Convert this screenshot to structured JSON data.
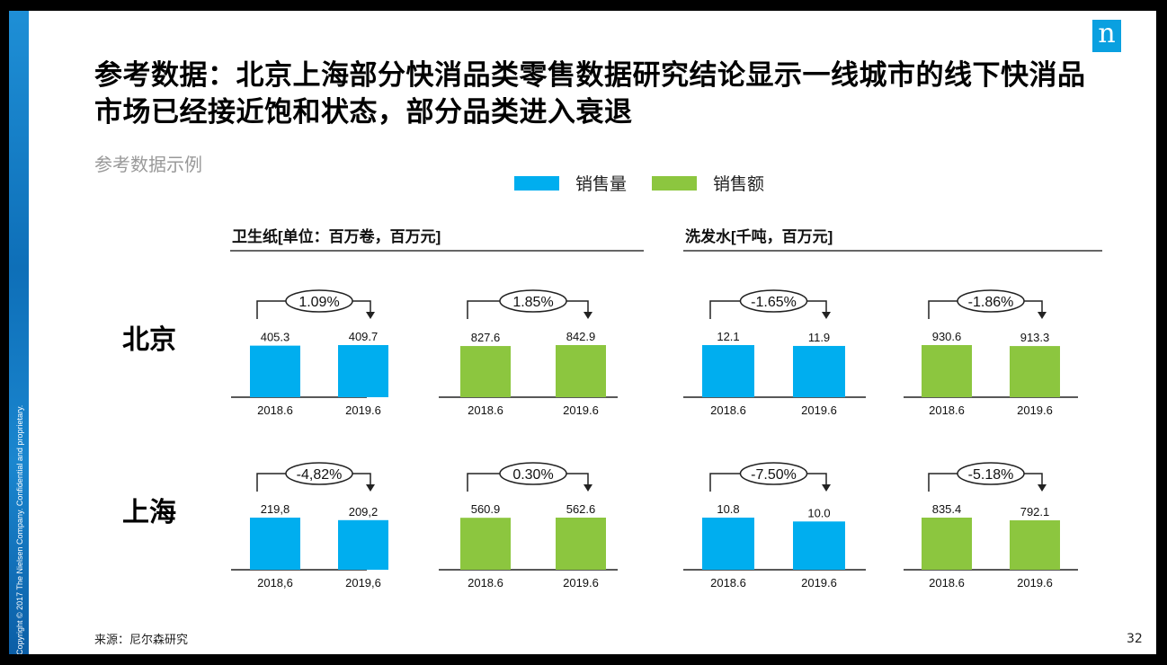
{
  "title": "参考数据：北京上海部分快消品类零售数据研究结论显示一线城市的线下快消品市场已经接近饱和状态，部分品类进入衰退",
  "subtitle": "参考数据示例",
  "legend": [
    {
      "label": "销售量",
      "color": "#00AEEF"
    },
    {
      "label": "销售额",
      "color": "#8CC63F"
    }
  ],
  "logo": "n",
  "copyright": "Copyright © 2017 The Nielsen Company. Confidential and proprietary.",
  "source": "来源：尼尔森研究",
  "page_number": "32",
  "chart_data": {
    "type": "bar",
    "groups": [
      {
        "title": "卫生纸[单位：百万卷，百万元]"
      },
      {
        "title": "洗发水[千吨，百万元]"
      }
    ],
    "rows": [
      "北京",
      "上海"
    ],
    "panels": [
      {
        "row": "北京",
        "group": 0,
        "series": "销售量",
        "color": "#00AEEF",
        "categories": [
          "2018.6",
          "2019.6"
        ],
        "values": [
          405.3,
          409.7
        ],
        "labels": [
          "405.3",
          "409.7"
        ],
        "change": "1.09%"
      },
      {
        "row": "北京",
        "group": 0,
        "series": "销售额",
        "color": "#8CC63F",
        "categories": [
          "2018.6",
          "2019.6"
        ],
        "values": [
          827.6,
          842.9
        ],
        "labels": [
          "827.6",
          "842.9"
        ],
        "change": "1.85%"
      },
      {
        "row": "北京",
        "group": 1,
        "series": "销售量",
        "color": "#00AEEF",
        "categories": [
          "2018.6",
          "2019.6"
        ],
        "values": [
          12.1,
          11.9
        ],
        "labels": [
          "12.1",
          "11.9"
        ],
        "change": "-1.65%"
      },
      {
        "row": "北京",
        "group": 1,
        "series": "销售额",
        "color": "#8CC63F",
        "categories": [
          "2018.6",
          "2019.6"
        ],
        "values": [
          930.6,
          913.3
        ],
        "labels": [
          "930.6",
          "913.3"
        ],
        "change": "-1.86%"
      },
      {
        "row": "上海",
        "group": 0,
        "series": "销售量",
        "color": "#00AEEF",
        "categories": [
          "2018,6",
          "2019,6"
        ],
        "values": [
          219.8,
          209.2
        ],
        "labels": [
          "219,8",
          "209,2"
        ],
        "change": "-4,82%"
      },
      {
        "row": "上海",
        "group": 0,
        "series": "销售额",
        "color": "#8CC63F",
        "categories": [
          "2018.6",
          "2019.6"
        ],
        "values": [
          560.9,
          562.6
        ],
        "labels": [
          "560.9",
          "562.6"
        ],
        "change": "0.30%"
      },
      {
        "row": "上海",
        "group": 1,
        "series": "销售量",
        "color": "#00AEEF",
        "categories": [
          "2018.6",
          "2019.6"
        ],
        "values": [
          10.8,
          10.0
        ],
        "labels": [
          "10.8",
          "10.0"
        ],
        "change": "-7.50%"
      },
      {
        "row": "上海",
        "group": 1,
        "series": "销售额",
        "color": "#8CC63F",
        "categories": [
          "2018.6",
          "2019.6"
        ],
        "values": [
          835.4,
          792.1
        ],
        "labels": [
          "835.4",
          "792.1"
        ],
        "change": "-5.18%"
      }
    ]
  }
}
